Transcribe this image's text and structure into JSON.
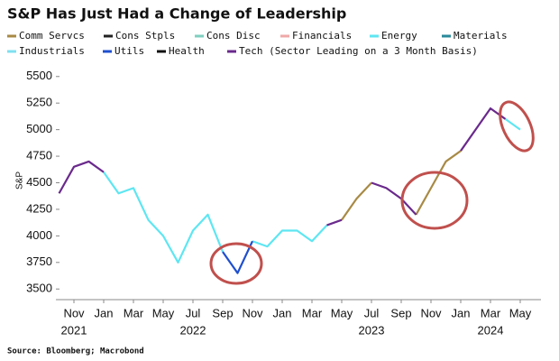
{
  "chart_data": {
    "type": "line",
    "title": "S&P Has Just Had a Change of Leadership",
    "ylabel": "S&P",
    "source": "Source: Bloomberg; Macrobond",
    "x": [
      "2021-10",
      "2021-11",
      "2021-12",
      "2022-01",
      "2022-02",
      "2022-03",
      "2022-04",
      "2022-05",
      "2022-06",
      "2022-07",
      "2022-08",
      "2022-09",
      "2022-10",
      "2022-11",
      "2022-12",
      "2023-01",
      "2023-02",
      "2023-03",
      "2023-04",
      "2023-05",
      "2023-06",
      "2023-07",
      "2023-08",
      "2023-09",
      "2023-10",
      "2023-11",
      "2023-12",
      "2024-01",
      "2024-02",
      "2024-03",
      "2024-04",
      "2024-05"
    ],
    "xticks": [
      {
        "value": "2021-11",
        "label": "Nov"
      },
      {
        "value": "2022-01",
        "label": "Jan"
      },
      {
        "value": "2022-03",
        "label": "Mar"
      },
      {
        "value": "2022-05",
        "label": "May"
      },
      {
        "value": "2022-07",
        "label": "Jul"
      },
      {
        "value": "2022-09",
        "label": "Sep"
      },
      {
        "value": "2022-11",
        "label": "Nov"
      },
      {
        "value": "2023-01",
        "label": "Jan"
      },
      {
        "value": "2023-03",
        "label": "Mar"
      },
      {
        "value": "2023-05",
        "label": "May"
      },
      {
        "value": "2023-07",
        "label": "Jul"
      },
      {
        "value": "2023-09",
        "label": "Sep"
      },
      {
        "value": "2023-11",
        "label": "Nov"
      },
      {
        "value": "2024-01",
        "label": "Jan"
      },
      {
        "value": "2024-03",
        "label": "Mar"
      },
      {
        "value": "2024-05",
        "label": "May"
      }
    ],
    "x_year_labels": [
      {
        "value": "2021-11",
        "label": "2021"
      },
      {
        "value": "2022-07",
        "label": "2022"
      },
      {
        "value": "2023-07",
        "label": "2023"
      },
      {
        "value": "2024-03",
        "label": "2024"
      }
    ],
    "ylim": [
      3400,
      5600
    ],
    "yticks": [
      3500,
      3750,
      4000,
      4250,
      4500,
      4750,
      5000,
      5250,
      5500
    ],
    "series": [
      {
        "name": "Comm Servcs",
        "color": "#a88a45",
        "values": [
          null,
          null,
          null,
          null,
          null,
          null,
          null,
          null,
          null,
          null,
          null,
          null,
          null,
          null,
          null,
          null,
          null,
          null,
          null,
          4150,
          4350,
          4500,
          null,
          null,
          4200,
          4450,
          4700,
          4800,
          null,
          null,
          null,
          null
        ]
      },
      {
        "name": "Cons Stpls",
        "color": "#222222",
        "values": [
          null,
          null,
          null,
          null,
          null,
          null,
          null,
          null,
          null,
          null,
          null,
          null,
          null,
          null,
          null,
          null,
          null,
          null,
          null,
          null,
          null,
          null,
          null,
          null,
          null,
          null,
          null,
          null,
          null,
          null,
          null,
          null
        ]
      },
      {
        "name": "Cons Disc",
        "color": "#7fcfbf",
        "values": [
          null,
          null,
          null,
          null,
          null,
          null,
          null,
          null,
          null,
          null,
          null,
          null,
          null,
          null,
          null,
          null,
          null,
          null,
          null,
          null,
          null,
          null,
          null,
          null,
          null,
          null,
          null,
          null,
          null,
          null,
          null,
          null
        ]
      },
      {
        "name": "Financials",
        "color": "#f0a8a8",
        "values": [
          null,
          null,
          null,
          null,
          null,
          null,
          null,
          null,
          null,
          null,
          null,
          null,
          null,
          null,
          null,
          null,
          null,
          null,
          null,
          null,
          null,
          null,
          null,
          null,
          null,
          null,
          null,
          null,
          null,
          null,
          null,
          null
        ]
      },
      {
        "name": "Energy",
        "color": "#5ee6f2",
        "values": [
          null,
          null,
          null,
          4600,
          4400,
          4450,
          4150,
          4000,
          3750,
          4050,
          4200,
          3850,
          null,
          3950,
          3900,
          4050,
          4050,
          3950,
          4100,
          null,
          null,
          null,
          null,
          null,
          null,
          null,
          null,
          null,
          null,
          null,
          5100,
          5000
        ]
      },
      {
        "name": "Materials",
        "color": "#2a8a9a",
        "values": [
          null,
          null,
          null,
          null,
          null,
          null,
          null,
          null,
          null,
          null,
          null,
          null,
          null,
          null,
          null,
          null,
          null,
          null,
          null,
          null,
          null,
          null,
          null,
          null,
          null,
          null,
          null,
          null,
          null,
          null,
          null,
          null
        ]
      },
      {
        "name": "Industrials",
        "color": "#7ee0f0",
        "values": [
          null,
          null,
          null,
          null,
          null,
          null,
          null,
          null,
          null,
          null,
          null,
          null,
          null,
          null,
          null,
          null,
          null,
          null,
          null,
          null,
          null,
          null,
          null,
          null,
          null,
          null,
          null,
          null,
          null,
          null,
          null,
          null
        ]
      },
      {
        "name": "Utils",
        "color": "#1f4fcf",
        "values": [
          null,
          null,
          null,
          null,
          null,
          null,
          null,
          null,
          null,
          null,
          null,
          3850,
          3650,
          3950,
          null,
          null,
          null,
          null,
          null,
          null,
          null,
          null,
          null,
          null,
          null,
          null,
          null,
          null,
          null,
          null,
          null,
          null
        ]
      },
      {
        "name": "Health",
        "color": "#111111",
        "values": [
          null,
          null,
          null,
          null,
          null,
          null,
          null,
          null,
          null,
          null,
          null,
          null,
          null,
          null,
          null,
          null,
          null,
          null,
          null,
          null,
          null,
          null,
          null,
          null,
          null,
          null,
          null,
          null,
          null,
          null,
          null,
          null
        ]
      },
      {
        "name": "Tech (Sector Leading on a 3 Month Basis)",
        "color": "#6a2a8c",
        "values": [
          4400,
          4650,
          4700,
          4600,
          null,
          null,
          null,
          null,
          null,
          null,
          null,
          null,
          null,
          null,
          null,
          null,
          null,
          null,
          4100,
          4150,
          null,
          4500,
          4450,
          4350,
          4200,
          null,
          null,
          4800,
          5000,
          5200,
          5100,
          null
        ]
      }
    ]
  }
}
